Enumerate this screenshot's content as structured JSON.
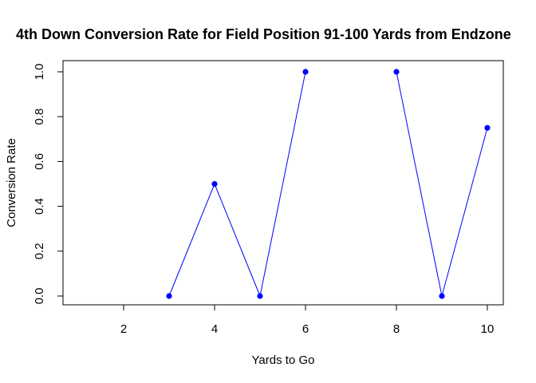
{
  "chart_data": {
    "type": "line",
    "title": "4th Down Conversion Rate for Field Position 91-100 Yards from Endzone",
    "xlabel": "Yards to Go",
    "ylabel": "Conversion Rate",
    "xlim": [
      1,
      10.5
    ],
    "ylim": [
      0,
      1
    ],
    "x_ticks": [
      2,
      4,
      6,
      8,
      10
    ],
    "y_ticks": [
      0.0,
      0.2,
      0.4,
      0.6,
      0.8,
      1.0
    ],
    "x_tick_labels": [
      "2",
      "4",
      "6",
      "8",
      "10"
    ],
    "y_tick_labels": [
      "0.0",
      "0.2",
      "0.4",
      "0.6",
      "0.8",
      "1.0"
    ],
    "grid": false,
    "series": [
      {
        "color": "#0000ff",
        "x": [
          1,
          2,
          3,
          4,
          5,
          6,
          7,
          8,
          9,
          10
        ],
        "values": [
          null,
          null,
          0.0,
          0.5,
          0.0,
          1.0,
          null,
          1.0,
          0.0,
          0.75
        ]
      }
    ]
  }
}
